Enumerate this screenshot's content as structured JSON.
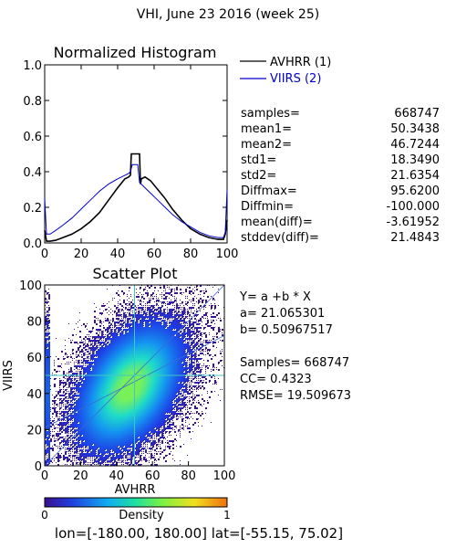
{
  "header": {
    "title": "VHI,  June 23 2016 (week 25)",
    "footer_lon_label": "lon=[",
    "footer_lon": "-180.00, 180.00",
    "footer_lat_label": "] lat=[",
    "footer_lat": "-55.15, 75.02",
    "footer_end": "]"
  },
  "colors": {
    "avhrr": "#000000",
    "viirs": "#0000cc",
    "fit_line": "#3a6ad8",
    "crosshair": "#40c8c0"
  },
  "stats": {
    "rows": [
      {
        "label": "samples=",
        "value": "668747"
      },
      {
        "label": "mean1=",
        "value": "50.3438"
      },
      {
        "label": "mean2=",
        "value": "46.7244"
      },
      {
        "label": "std1=",
        "value": "18.3490"
      },
      {
        "label": "std2=",
        "value": "21.6354"
      },
      {
        "label": "Diffmax=",
        "value": "95.6200"
      },
      {
        "label": "Diffmin=",
        "value": "-100.000"
      },
      {
        "label": "mean(diff)=",
        "value": "-3.61952"
      },
      {
        "label": "stddev(diff)=",
        "value": "21.4843"
      }
    ]
  },
  "regression": {
    "equation": "Y= a +b * X",
    "a_line": "a= 21.065301",
    "b_line": "b= 0.50967517",
    "samples_line": "Samples= 668747",
    "cc_line": "CC=  0.4323",
    "rmse_line": "RMSE= 19.509673"
  },
  "colorbar": {
    "min_label": "0",
    "max_label": "1",
    "title": "Density"
  },
  "chart_data": [
    {
      "type": "line",
      "title": "Normalized Histogram",
      "xlabel": "",
      "ylabel": "",
      "xlim": [
        0,
        100
      ],
      "ylim": [
        0,
        1.0
      ],
      "xticks": [
        "0",
        "20",
        "40",
        "60",
        "80",
        "100"
      ],
      "yticks": [
        "0.0",
        "0.2",
        "0.4",
        "0.6",
        "0.8",
        "1.0"
      ],
      "legend_position": "right",
      "series": [
        {
          "name": "AVHRR (1)",
          "color": "#000000",
          "x": [
            0,
            1,
            3,
            6,
            10,
            15,
            20,
            25,
            30,
            35,
            40,
            44,
            46,
            47,
            47.5,
            48,
            52,
            52.5,
            53,
            55,
            58,
            62,
            66,
            70,
            75,
            80,
            85,
            90,
            95,
            98,
            99,
            100
          ],
          "y": [
            0.07,
            0.01,
            0.01,
            0.015,
            0.03,
            0.05,
            0.08,
            0.12,
            0.17,
            0.24,
            0.31,
            0.36,
            0.37,
            0.38,
            0.5,
            0.5,
            0.5,
            0.33,
            0.36,
            0.37,
            0.35,
            0.3,
            0.25,
            0.19,
            0.13,
            0.08,
            0.05,
            0.03,
            0.02,
            0.02,
            0.05,
            0.13
          ]
        },
        {
          "name": "VIIRS (2)",
          "color": "#0000cc",
          "x": [
            0,
            1,
            3,
            6,
            10,
            15,
            20,
            25,
            30,
            35,
            40,
            44,
            46,
            47,
            48,
            49,
            50,
            51,
            52,
            53,
            55,
            58,
            62,
            66,
            70,
            75,
            80,
            85,
            90,
            95,
            98,
            99,
            100
          ],
          "y": [
            0.25,
            0.05,
            0.05,
            0.07,
            0.1,
            0.14,
            0.19,
            0.24,
            0.29,
            0.33,
            0.36,
            0.38,
            0.39,
            0.4,
            0.44,
            0.44,
            0.44,
            0.44,
            0.34,
            0.33,
            0.31,
            0.28,
            0.24,
            0.2,
            0.16,
            0.12,
            0.09,
            0.06,
            0.04,
            0.03,
            0.03,
            0.06,
            0.3
          ]
        }
      ]
    },
    {
      "type": "heatmap",
      "title": "Scatter Plot",
      "xlabel": "AVHRR",
      "ylabel": "VIIRS",
      "xlim": [
        0,
        100
      ],
      "ylim": [
        0,
        100
      ],
      "xticks": [
        "0",
        "20",
        "40",
        "60",
        "80",
        "100"
      ],
      "yticks": [
        "0",
        "20",
        "40",
        "60",
        "80",
        "100"
      ],
      "fit": {
        "a": 21.065301,
        "b": 0.50967517
      },
      "crosshair": {
        "x": 50,
        "y": 50
      },
      "density": {
        "center": [
          47,
          44
        ],
        "std_x": 18.3,
        "std_y": 21.6,
        "correlation": 0.43
      }
    }
  ]
}
